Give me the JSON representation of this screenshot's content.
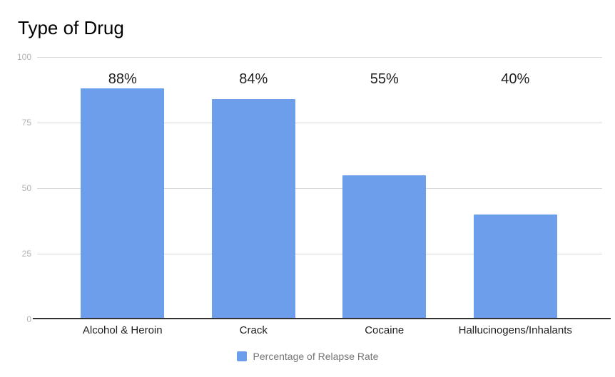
{
  "title": "Type of Drug",
  "legend": {
    "label": "Percentage of Relapse Rate",
    "swatch_color": "#6d9eeb"
  },
  "colors": {
    "bar": "#6d9eeb",
    "gridline": "#d9d9d9",
    "axis_line": "#333333",
    "y_tick_label": "#b3b3b3",
    "value_label": "#212121",
    "category_label": "#212121",
    "legend_text": "#757575",
    "background": "#ffffff"
  },
  "chart_data": {
    "type": "bar",
    "title": "Type of Drug",
    "categories": [
      "Alcohol & Heroin",
      "Crack",
      "Cocaine",
      "Hallucinogens/Inhalants"
    ],
    "values": [
      88,
      84,
      55,
      40
    ],
    "value_labels": [
      "88%",
      "84%",
      "55%",
      "40%"
    ],
    "series": [
      {
        "name": "Percentage of Relapse Rate",
        "values": [
          88,
          84,
          55,
          40
        ]
      }
    ],
    "ylim": [
      0,
      100
    ],
    "yticks": [
      0,
      25,
      50,
      75,
      100
    ],
    "grid": true,
    "legend_position": "bottom"
  }
}
